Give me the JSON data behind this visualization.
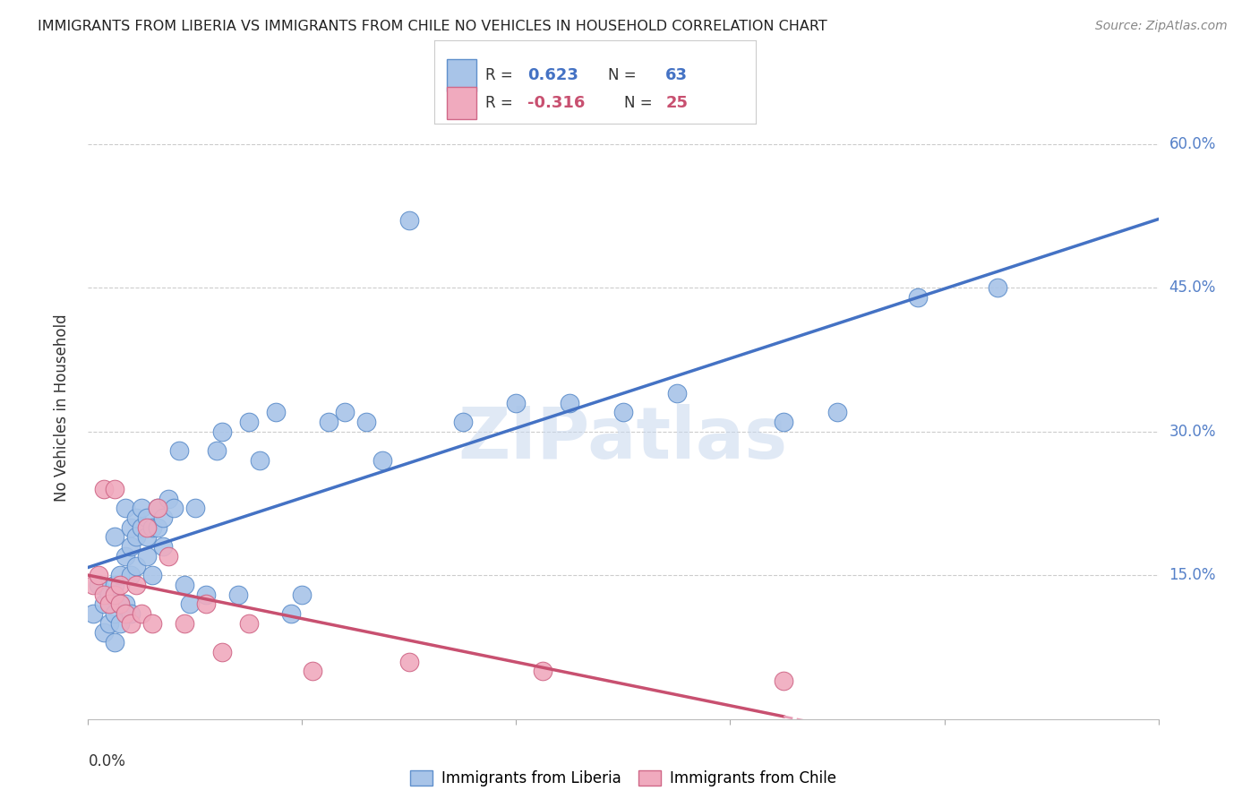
{
  "title": "IMMIGRANTS FROM LIBERIA VS IMMIGRANTS FROM CHILE NO VEHICLES IN HOUSEHOLD CORRELATION CHART",
  "source": "Source: ZipAtlas.com",
  "ylabel": "No Vehicles in Household",
  "y_tick_labels": [
    "",
    "15.0%",
    "30.0%",
    "45.0%",
    "60.0%"
  ],
  "y_tick_values": [
    0.0,
    0.15,
    0.3,
    0.45,
    0.6
  ],
  "xlim": [
    0.0,
    0.2
  ],
  "ylim": [
    0.0,
    0.65
  ],
  "watermark": "ZIPatlas",
  "liberia_color": "#a8c4e8",
  "liberia_edge": "#6090cc",
  "chile_color": "#f0aabe",
  "chile_edge": "#d06888",
  "trend_liberia_color": "#4472c4",
  "trend_chile_color": "#c85070",
  "trend_chile_dashed_color": "#e8a0b8",
  "legend_box_color": "#a8c4e8",
  "legend_box_color2": "#f0aabe",
  "r1_color": "#4472c4",
  "r2_color": "#c85070",
  "liberia_x": [
    0.001,
    0.002,
    0.003,
    0.003,
    0.004,
    0.004,
    0.005,
    0.005,
    0.005,
    0.005,
    0.006,
    0.006,
    0.006,
    0.007,
    0.007,
    0.007,
    0.008,
    0.008,
    0.008,
    0.008,
    0.009,
    0.009,
    0.009,
    0.01,
    0.01,
    0.011,
    0.011,
    0.011,
    0.012,
    0.012,
    0.013,
    0.013,
    0.014,
    0.014,
    0.015,
    0.016,
    0.017,
    0.018,
    0.019,
    0.02,
    0.022,
    0.024,
    0.025,
    0.028,
    0.03,
    0.032,
    0.035,
    0.038,
    0.04,
    0.045,
    0.048,
    0.052,
    0.055,
    0.06,
    0.07,
    0.08,
    0.09,
    0.1,
    0.11,
    0.13,
    0.14,
    0.155,
    0.17
  ],
  "liberia_y": [
    0.11,
    0.14,
    0.12,
    0.09,
    0.1,
    0.13,
    0.19,
    0.14,
    0.11,
    0.08,
    0.15,
    0.12,
    0.1,
    0.22,
    0.17,
    0.12,
    0.2,
    0.18,
    0.15,
    0.11,
    0.21,
    0.19,
    0.16,
    0.22,
    0.2,
    0.21,
    0.19,
    0.17,
    0.2,
    0.15,
    0.22,
    0.2,
    0.21,
    0.18,
    0.23,
    0.22,
    0.28,
    0.14,
    0.12,
    0.22,
    0.13,
    0.28,
    0.3,
    0.13,
    0.31,
    0.27,
    0.32,
    0.11,
    0.13,
    0.31,
    0.32,
    0.31,
    0.27,
    0.52,
    0.31,
    0.33,
    0.33,
    0.32,
    0.34,
    0.31,
    0.32,
    0.44,
    0.45
  ],
  "chile_x": [
    0.001,
    0.002,
    0.003,
    0.003,
    0.004,
    0.005,
    0.005,
    0.006,
    0.006,
    0.007,
    0.008,
    0.009,
    0.01,
    0.011,
    0.012,
    0.013,
    0.015,
    0.018,
    0.022,
    0.025,
    0.03,
    0.042,
    0.06,
    0.085,
    0.13
  ],
  "chile_y": [
    0.14,
    0.15,
    0.13,
    0.24,
    0.12,
    0.24,
    0.13,
    0.14,
    0.12,
    0.11,
    0.1,
    0.14,
    0.11,
    0.2,
    0.1,
    0.22,
    0.17,
    0.1,
    0.12,
    0.07,
    0.1,
    0.05,
    0.06,
    0.05,
    0.04
  ]
}
